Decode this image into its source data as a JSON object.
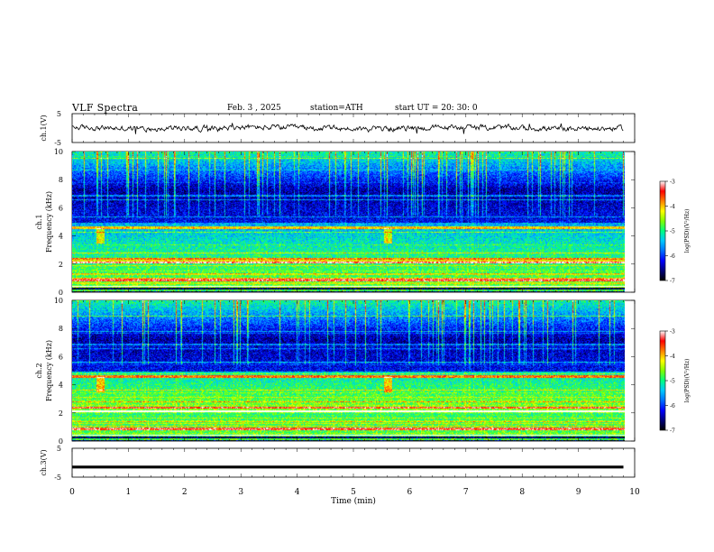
{
  "header": {
    "title": "VLF Spectra",
    "date": "Feb. 3 , 2025",
    "station": "station=ATH",
    "start_ut": "start UT = 20: 30: 0"
  },
  "colors": {
    "colormap": [
      "#000000",
      "#00007a",
      "#0000ff",
      "#0070ff",
      "#00c8ff",
      "#00ff80",
      "#80ff00",
      "#ffff00",
      "#ff8000",
      "#ff0000",
      "#ffffff"
    ],
    "waveform": "#000000"
  },
  "chart_data": [
    {
      "type": "line",
      "panel": "ch1",
      "ylabel": "ch.1(V)",
      "ylim": [
        -5,
        5
      ],
      "yticks": [
        "5",
        "-5"
      ],
      "x_range": [
        0,
        9.8
      ],
      "description_level": "noisy waveform, mean about 0 V"
    },
    {
      "type": "heatmap",
      "panel": "ch1-spectrogram",
      "ylabel": "ch.1\nFrequency (kHz)",
      "ylabel_line1": "ch.1",
      "ylabel_line2": "Frequency (kHz)",
      "ylim": [
        0,
        10
      ],
      "yticks": [
        "0",
        "2",
        "4",
        "6",
        "8",
        "10"
      ],
      "x_range": [
        0,
        9.8
      ],
      "colorbar": {
        "label": "log(PSD)(V²/Hz)",
        "range": [
          -7,
          -3
        ],
        "ticks": [
          "-3",
          "-4",
          "-5",
          "-6",
          "-7"
        ]
      }
    },
    {
      "type": "heatmap",
      "panel": "ch2-spectrogram",
      "ylabel": "ch.2\nFrequency (kHz)",
      "ylabel_line1": "ch.2",
      "ylabel_line2": "Frequency (kHz)",
      "ylim": [
        0,
        10
      ],
      "yticks": [
        "0",
        "2",
        "4",
        "6",
        "8",
        "10"
      ],
      "x_range": [
        0,
        9.8
      ],
      "colorbar": {
        "label": "log(PSD)(V²/Hz)",
        "range": [
          -7,
          -3
        ],
        "ticks": [
          "-3",
          "-4",
          "-5",
          "-6",
          "-7"
        ]
      }
    },
    {
      "type": "line",
      "panel": "ch3",
      "ylabel": "ch.3(V)",
      "ylim": [
        -5,
        5
      ],
      "yticks": [
        "5",
        "-5"
      ],
      "x_range": [
        0,
        9.8
      ],
      "level": -1.5
    }
  ],
  "x_axis": {
    "xlabel": "Time (min)",
    "xlim": [
      0,
      10
    ],
    "ticks": [
      "0",
      "1",
      "2",
      "3",
      "4",
      "5",
      "6",
      "7",
      "8",
      "9",
      "10"
    ]
  }
}
